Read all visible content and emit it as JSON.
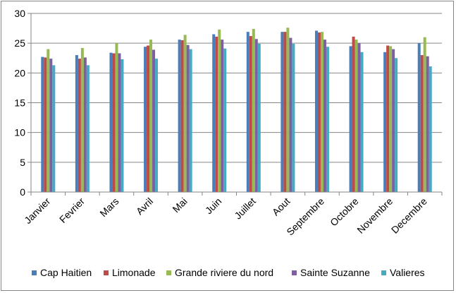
{
  "chart_data": {
    "type": "bar",
    "title": "",
    "xlabel": "",
    "ylabel": "",
    "ylim": [
      0,
      30
    ],
    "yticks": [
      0,
      5,
      10,
      15,
      20,
      25,
      30
    ],
    "grid": "horizontal major gridlines",
    "legend_position": "bottom",
    "categories": [
      "Janvier",
      "Fevrier",
      "Mars",
      "Avril",
      "Mai",
      "Juin",
      "Juillet",
      "Aout",
      "Septembre",
      "Octobre",
      "Novembre",
      "Decembre"
    ],
    "series": [
      {
        "name": "Cap Haitien",
        "color": "#4A7EBB",
        "values": [
          22.7,
          23.0,
          23.4,
          24.4,
          25.6,
          26.5,
          26.9,
          26.9,
          27.1,
          24.5,
          23.5,
          25.0
        ]
      },
      {
        "name": "Limonade",
        "color": "#BE4B48",
        "values": [
          22.6,
          22.4,
          23.3,
          24.6,
          25.5,
          26.1,
          26.2,
          26.9,
          26.8,
          26.1,
          24.6,
          23.0
        ]
      },
      {
        "name": "Grande riviere du nord",
        "color": "#98B954",
        "values": [
          24.0,
          24.2,
          25.0,
          25.6,
          26.4,
          27.3,
          27.4,
          27.6,
          26.9,
          25.6,
          24.5,
          26.0
        ]
      },
      {
        "name": "Sainte Suzanne",
        "color": "#7D60A0",
        "values": [
          22.4,
          22.6,
          23.3,
          23.9,
          24.7,
          25.6,
          25.7,
          25.9,
          25.6,
          25.0,
          24.0,
          22.8
        ]
      },
      {
        "name": "Valieres",
        "color": "#46AAC5",
        "values": [
          21.3,
          21.3,
          22.3,
          22.4,
          24.0,
          24.1,
          24.9,
          24.9,
          24.4,
          23.5,
          22.5,
          21.1
        ]
      }
    ]
  }
}
